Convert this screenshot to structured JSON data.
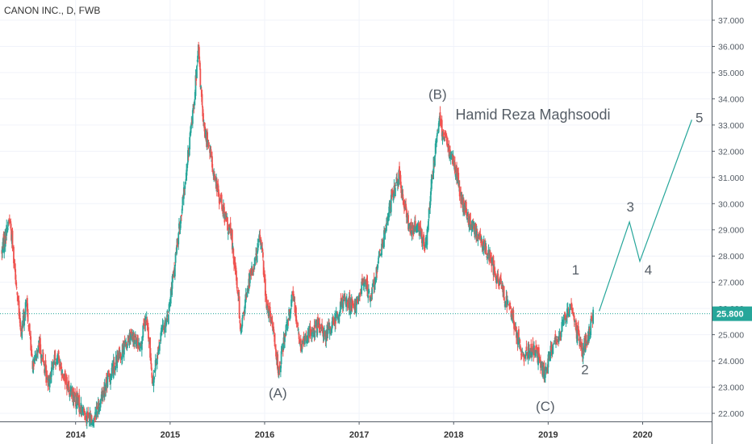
{
  "header": {
    "title": "CANON INC., D, FWB"
  },
  "chart_data": {
    "type": "candlestick",
    "ylim": [
      21.6,
      37.3
    ],
    "y_ticks": [
      "22.000",
      "23.000",
      "24.000",
      "25.000",
      "26.000",
      "27.000",
      "28.000",
      "29.000",
      "30.000",
      "31.000",
      "32.000",
      "33.000",
      "34.000",
      "35.000",
      "36.000",
      "37.000"
    ],
    "x_ticks": [
      {
        "label": "2014",
        "x": 2014.0
      },
      {
        "label": "2015",
        "x": 2015.0
      },
      {
        "label": "2016",
        "x": 2016.0
      },
      {
        "label": "2017",
        "x": 2017.0
      },
      {
        "label": "2018",
        "x": 2018.0
      },
      {
        "label": "2019",
        "x": 2019.0
      },
      {
        "label": "2020",
        "x": 2020.0
      }
    ],
    "xlim": [
      2013.2,
      2020.73
    ],
    "last_price": "25.800",
    "last_price_value": 25.8,
    "colors": {
      "up": "#26a69a",
      "down": "#ef5350",
      "price_line": "#26a69a",
      "projection": "#26a69a",
      "text": "#555d66"
    },
    "price_path": [
      [
        2013.22,
        28.2
      ],
      [
        2013.3,
        29.5
      ],
      [
        2013.36,
        27.5
      ],
      [
        2013.42,
        25.0
      ],
      [
        2013.48,
        26.2
      ],
      [
        2013.55,
        23.8
      ],
      [
        2013.62,
        24.6
      ],
      [
        2013.7,
        23.2
      ],
      [
        2013.8,
        24.2
      ],
      [
        2013.92,
        23.0
      ],
      [
        2014.02,
        22.4
      ],
      [
        2014.1,
        22.0
      ],
      [
        2014.18,
        21.7
      ],
      [
        2014.3,
        22.9
      ],
      [
        2014.4,
        23.8
      ],
      [
        2014.48,
        24.3
      ],
      [
        2014.58,
        24.9
      ],
      [
        2014.68,
        24.6
      ],
      [
        2014.75,
        25.6
      ],
      [
        2014.82,
        23.2
      ],
      [
        2014.9,
        25.0
      ],
      [
        2014.98,
        25.8
      ],
      [
        2015.06,
        28.0
      ],
      [
        2015.15,
        30.5
      ],
      [
        2015.24,
        33.5
      ],
      [
        2015.3,
        35.8
      ],
      [
        2015.35,
        33.0
      ],
      [
        2015.42,
        32.0
      ],
      [
        2015.5,
        30.5
      ],
      [
        2015.58,
        29.5
      ],
      [
        2015.65,
        28.7
      ],
      [
        2015.7,
        27.2
      ],
      [
        2015.75,
        25.2
      ],
      [
        2015.82,
        26.8
      ],
      [
        2015.9,
        27.9
      ],
      [
        2015.96,
        28.8
      ],
      [
        2016.02,
        26.2
      ],
      [
        2016.1,
        25.0
      ],
      [
        2016.15,
        23.5
      ],
      [
        2016.22,
        25.2
      ],
      [
        2016.3,
        26.6
      ],
      [
        2016.38,
        24.5
      ],
      [
        2016.45,
        25.0
      ],
      [
        2016.55,
        25.3
      ],
      [
        2016.65,
        25.0
      ],
      [
        2016.75,
        25.6
      ],
      [
        2016.85,
        26.4
      ],
      [
        2016.95,
        26.0
      ],
      [
        2017.05,
        27.0
      ],
      [
        2017.12,
        26.5
      ],
      [
        2017.2,
        27.6
      ],
      [
        2017.28,
        29.2
      ],
      [
        2017.35,
        30.3
      ],
      [
        2017.42,
        31.0
      ],
      [
        2017.48,
        29.8
      ],
      [
        2017.55,
        28.9
      ],
      [
        2017.62,
        29.3
      ],
      [
        2017.7,
        28.3
      ],
      [
        2017.75,
        30.2
      ],
      [
        2017.8,
        32.0
      ],
      [
        2017.85,
        33.1
      ],
      [
        2017.92,
        32.3
      ],
      [
        2018.0,
        31.6
      ],
      [
        2018.08,
        30.2
      ],
      [
        2018.15,
        29.5
      ],
      [
        2018.22,
        29.0
      ],
      [
        2018.3,
        28.6
      ],
      [
        2018.38,
        28.0
      ],
      [
        2018.45,
        27.2
      ],
      [
        2018.52,
        26.6
      ],
      [
        2018.6,
        26.0
      ],
      [
        2018.68,
        24.8
      ],
      [
        2018.75,
        24.2
      ],
      [
        2018.82,
        24.6
      ],
      [
        2018.9,
        24.1
      ],
      [
        2018.96,
        23.5
      ],
      [
        2019.02,
        24.3
      ],
      [
        2019.1,
        24.9
      ],
      [
        2019.18,
        25.6
      ],
      [
        2019.25,
        26.1
      ],
      [
        2019.3,
        25.1
      ],
      [
        2019.36,
        24.4
      ],
      [
        2019.42,
        25.0
      ],
      [
        2019.48,
        25.8
      ]
    ],
    "projection_path": [
      [
        2019.54,
        25.9
      ],
      [
        2019.86,
        29.3
      ],
      [
        2019.97,
        27.8
      ],
      [
        2020.52,
        33.2
      ]
    ],
    "wave_labels": [
      {
        "text": "(A)",
        "x": 2016.14,
        "y": 22.6
      },
      {
        "text": "(B)",
        "x": 2017.83,
        "y": 34.0
      },
      {
        "text": "(C)",
        "x": 2018.97,
        "y": 22.1
      },
      {
        "text": "1",
        "x": 2019.29,
        "y": 27.3
      },
      {
        "text": "2",
        "x": 2019.39,
        "y": 23.5
      },
      {
        "text": "3",
        "x": 2019.87,
        "y": 29.7
      },
      {
        "text": "4",
        "x": 2020.06,
        "y": 27.3
      },
      {
        "text": "5",
        "x": 2020.6,
        "y": 33.1
      }
    ],
    "annotation": {
      "text": "Hamid Reza Maghsoodi",
      "x": 2018.83,
      "y": 33.4
    }
  }
}
